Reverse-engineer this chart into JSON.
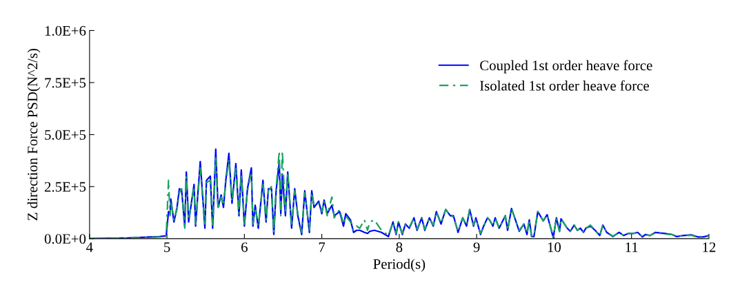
{
  "chart_data": {
    "type": "line",
    "xlabel": "Period(s)",
    "ylabel": "Z direction Force PSD(N^2/s)",
    "xlim": [
      4,
      12
    ],
    "xticks": [
      4,
      5,
      6,
      7,
      8,
      9,
      10,
      11,
      12
    ],
    "ylim": [
      0,
      1000000
    ],
    "yticks": [
      {
        "value": 0,
        "label": "0.0E+0"
      },
      {
        "value": 250000,
        "label": "2.5E+5"
      },
      {
        "value": 500000,
        "label": "5.0E+5"
      },
      {
        "value": 750000,
        "label": "7.5E+5"
      },
      {
        "value": 1000000,
        "label": "1.0E+6"
      }
    ],
    "grid": false,
    "legend": "top right",
    "marker": "none",
    "series": [
      {
        "name": "Coupled 1st order heave force",
        "color": "#0000ff",
        "line_style": "solid",
        "x": [
          4.0,
          4.5,
          4.9,
          4.99,
          5.02,
          5.04,
          5.05,
          5.09,
          5.13,
          5.16,
          5.19,
          5.23,
          5.25,
          5.28,
          5.35,
          5.37,
          5.4,
          5.43,
          5.49,
          5.51,
          5.56,
          5.59,
          5.61,
          5.63,
          5.66,
          5.7,
          5.73,
          5.76,
          5.8,
          5.84,
          5.89,
          5.93,
          5.96,
          6.0,
          6.04,
          6.09,
          6.11,
          6.14,
          6.18,
          6.24,
          6.28,
          6.31,
          6.35,
          6.38,
          6.41,
          6.45,
          6.47,
          6.49,
          6.53,
          6.56,
          6.61,
          6.65,
          6.69,
          6.74,
          6.78,
          6.84,
          6.87,
          6.9,
          6.96,
          7.0,
          7.03,
          7.07,
          7.13,
          7.16,
          7.23,
          7.28,
          7.31,
          7.37,
          7.41,
          7.45,
          7.49,
          7.55,
          7.59,
          7.62,
          7.68,
          7.77,
          7.86,
          7.92,
          7.96,
          7.99,
          8.04,
          8.08,
          8.13,
          8.19,
          8.23,
          8.29,
          8.33,
          8.39,
          8.44,
          8.48,
          8.54,
          8.6,
          8.66,
          8.7,
          8.76,
          8.82,
          8.87,
          8.91,
          8.96,
          8.99,
          9.05,
          9.09,
          9.14,
          9.17,
          9.21,
          9.24,
          9.29,
          9.37,
          9.4,
          9.45,
          9.51,
          9.55,
          9.61,
          9.65,
          9.68,
          9.71,
          9.74,
          9.79,
          9.86,
          9.91,
          9.99,
          10.03,
          10.07,
          10.09,
          10.17,
          10.21,
          10.26,
          10.3,
          10.34,
          10.38,
          10.41,
          10.47,
          10.53,
          10.59,
          10.63,
          10.68,
          10.76,
          10.84,
          10.9,
          10.96,
          11.02,
          11.08,
          11.14,
          11.18,
          11.24,
          11.31,
          11.43,
          11.52,
          11.58,
          11.67,
          11.77,
          11.86,
          11.93,
          12.0
        ],
        "values": [
          0,
          3000,
          10000,
          13000,
          130000,
          120000,
          190000,
          80000,
          150000,
          240000,
          230000,
          60000,
          320000,
          80000,
          260000,
          60000,
          220000,
          370000,
          50000,
          280000,
          300000,
          50000,
          230000,
          430000,
          150000,
          210000,
          150000,
          280000,
          410000,
          170000,
          360000,
          110000,
          330000,
          60000,
          240000,
          340000,
          60000,
          160000,
          50000,
          280000,
          80000,
          240000,
          240000,
          20000,
          230000,
          370000,
          120000,
          310000,
          110000,
          320000,
          50000,
          240000,
          110000,
          20000,
          230000,
          30000,
          230000,
          150000,
          180000,
          120000,
          185000,
          120000,
          160000,
          110000,
          130000,
          60000,
          120000,
          90000,
          30000,
          40000,
          40000,
          30000,
          25000,
          35000,
          40000,
          30000,
          10000,
          80000,
          20000,
          80000,
          20000,
          70000,
          50000,
          100000,
          40000,
          100000,
          40000,
          100000,
          60000,
          130000,
          70000,
          140000,
          110000,
          110000,
          30000,
          100000,
          60000,
          140000,
          60000,
          100000,
          20000,
          60000,
          100000,
          88000,
          60000,
          100000,
          50000,
          110000,
          40000,
          145000,
          80000,
          35000,
          70000,
          20000,
          90000,
          10000,
          10000,
          130000,
          85000,
          115000,
          5000,
          100000,
          35000,
          95000,
          50000,
          35000,
          65000,
          40000,
          50000,
          30000,
          50000,
          60000,
          40000,
          15000,
          65000,
          30000,
          10000,
          30000,
          15000,
          25000,
          25000,
          30000,
          8000,
          20000,
          15000,
          30000,
          25000,
          20000,
          10000,
          15000,
          18000,
          8000,
          8000,
          15000
        ]
      },
      {
        "name": "Isolated 1st order heave force",
        "color": "#1aa35a",
        "line_style": "dashed",
        "x": [
          4.0,
          4.5,
          4.9,
          4.99,
          5.02,
          5.04,
          5.05,
          5.09,
          5.13,
          5.16,
          5.19,
          5.23,
          5.25,
          5.28,
          5.35,
          5.37,
          5.4,
          5.43,
          5.49,
          5.51,
          5.56,
          5.59,
          5.61,
          5.63,
          5.66,
          5.7,
          5.73,
          5.76,
          5.8,
          5.84,
          5.89,
          5.93,
          5.96,
          6.0,
          6.04,
          6.09,
          6.11,
          6.14,
          6.18,
          6.24,
          6.28,
          6.31,
          6.35,
          6.38,
          6.41,
          6.45,
          6.47,
          6.49,
          6.53,
          6.56,
          6.61,
          6.65,
          6.69,
          6.74,
          6.78,
          6.84,
          6.87,
          6.9,
          6.96,
          7.0,
          7.03,
          7.07,
          7.13,
          7.16,
          7.23,
          7.28,
          7.31,
          7.37,
          7.41,
          7.45,
          7.49,
          7.55,
          7.59,
          7.62,
          7.68,
          7.77,
          7.86,
          7.92,
          7.96,
          7.99,
          8.04,
          8.08,
          8.13,
          8.19,
          8.23,
          8.29,
          8.33,
          8.39,
          8.44,
          8.48,
          8.54,
          8.6,
          8.66,
          8.7,
          8.76,
          8.82,
          8.87,
          8.91,
          8.96,
          8.99,
          9.05,
          9.09,
          9.14,
          9.17,
          9.21,
          9.24,
          9.29,
          9.37,
          9.4,
          9.45,
          9.51,
          9.55,
          9.61,
          9.65,
          9.68,
          9.71,
          9.74,
          9.79,
          9.86,
          9.91,
          9.99,
          10.03,
          10.07,
          10.09,
          10.17,
          10.21,
          10.26,
          10.3,
          10.34,
          10.38,
          10.41,
          10.47,
          10.53,
          10.59,
          10.63,
          10.68,
          10.76,
          10.84,
          10.9,
          10.96,
          11.02,
          11.08,
          11.14,
          11.18,
          11.24,
          11.31,
          11.43,
          11.52,
          11.58,
          11.67,
          11.77,
          11.86,
          11.93,
          12.0
        ],
        "values": [
          0,
          3000,
          8000,
          10000,
          280000,
          110000,
          180000,
          90000,
          140000,
          220000,
          240000,
          50000,
          300000,
          90000,
          250000,
          70000,
          210000,
          340000,
          60000,
          270000,
          280000,
          60000,
          220000,
          400000,
          140000,
          200000,
          160000,
          270000,
          380000,
          180000,
          340000,
          120000,
          310000,
          70000,
          230000,
          320000,
          70000,
          150000,
          60000,
          270000,
          90000,
          230000,
          250000,
          30000,
          240000,
          420000,
          110000,
          420000,
          120000,
          320000,
          60000,
          230000,
          120000,
          30000,
          220000,
          40000,
          220000,
          160000,
          170000,
          130000,
          180000,
          110000,
          200000,
          100000,
          140000,
          70000,
          110000,
          80000,
          40000,
          60000,
          50000,
          90000,
          40000,
          80000,
          90000,
          40000,
          15000,
          80000,
          25000,
          80000,
          25000,
          70000,
          55000,
          100000,
          45000,
          100000,
          45000,
          100000,
          65000,
          130000,
          75000,
          140000,
          110000,
          105000,
          35000,
          100000,
          65000,
          140000,
          65000,
          95000,
          25000,
          60000,
          100000,
          88000,
          60000,
          100000,
          50000,
          110000,
          40000,
          145000,
          80000,
          40000,
          70000,
          25000,
          90000,
          10000,
          15000,
          130000,
          85000,
          115000,
          8000,
          100000,
          35000,
          95000,
          50000,
          35000,
          65000,
          40000,
          50000,
          30000,
          50000,
          65000,
          40000,
          15000,
          65000,
          30000,
          12000,
          28000,
          15000,
          25000,
          25000,
          28000,
          10000,
          18000,
          15000,
          28000,
          22000,
          20000,
          12000,
          14000,
          16000,
          6000,
          6000,
          12000
        ]
      }
    ]
  }
}
